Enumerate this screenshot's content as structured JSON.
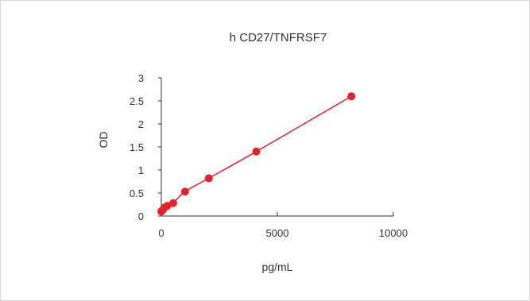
{
  "chart_data": {
    "type": "scatter",
    "title": "h  CD27/TNFRSF7",
    "xlabel": "pg/mL",
    "ylabel": "OD",
    "xlim": [
      0,
      10000
    ],
    "ylim": [
      0,
      3
    ],
    "x_ticks": [
      "0",
      "5000",
      "10000"
    ],
    "y_ticks": [
      "0",
      "0.5",
      "1",
      "1.5",
      "2",
      "2.5",
      "3"
    ],
    "grid": false,
    "legend": "none",
    "series_color": "#e8202a",
    "points": [
      {
        "x": 0,
        "y": 0.1
      },
      {
        "x": 64,
        "y": 0.13
      },
      {
        "x": 128,
        "y": 0.18
      },
      {
        "x": 256,
        "y": 0.22
      },
      {
        "x": 512,
        "y": 0.28
      },
      {
        "x": 1024,
        "y": 0.53
      },
      {
        "x": 2048,
        "y": 0.82
      },
      {
        "x": 4096,
        "y": 1.4
      },
      {
        "x": 8192,
        "y": 2.6
      }
    ]
  }
}
